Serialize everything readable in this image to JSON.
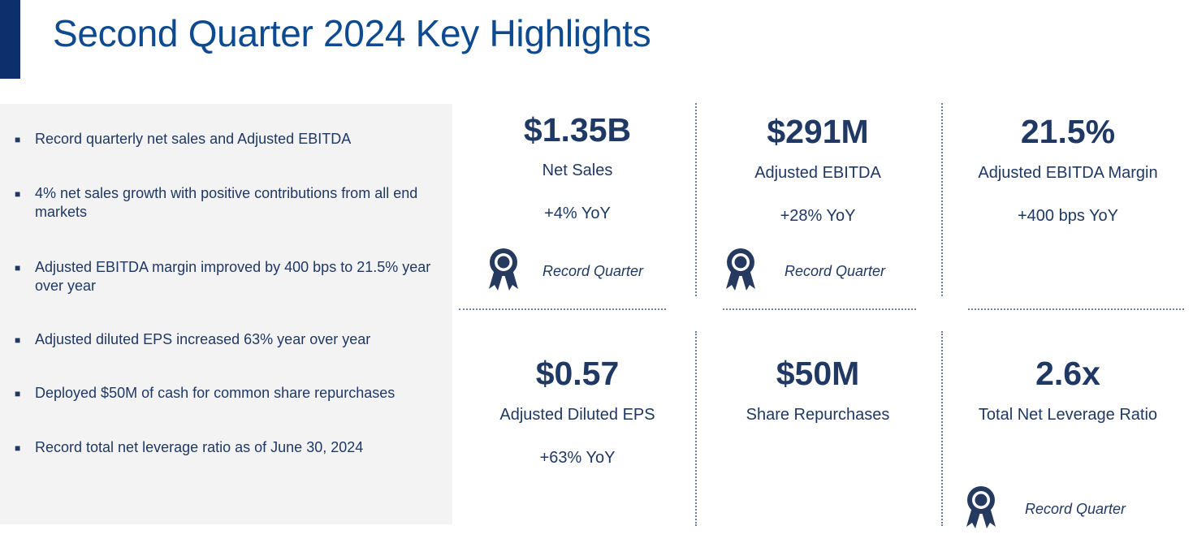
{
  "title": "Second Quarter 2024 Key Highlights",
  "colors": {
    "accent": "#0d2f6b",
    "title": "#0d4a8f",
    "text": "#1f3864",
    "panel": "#f3f3f3"
  },
  "bullets": [
    "Record quarterly net sales and Adjusted EBITDA",
    "4% net sales growth with positive contributions from all end markets",
    "Adjusted EBITDA margin improved by 400 bps to 21.5% year over year",
    "Adjusted diluted EPS increased 63% year over year",
    "Deployed $50M of cash for common share repurchases",
    "Record total net leverage ratio as of June 30, 2024"
  ],
  "bullet_marker": "■",
  "metrics": {
    "net_sales": {
      "value": "$1.35B",
      "label": "Net Sales",
      "change": "+4% YoY"
    },
    "adjusted_ebitda": {
      "value": "$291M",
      "label": "Adjusted EBITDA",
      "change": "+28% YoY"
    },
    "ebitda_margin": {
      "value": "21.5%",
      "label": "Adjusted EBITDA Margin",
      "change": "+400 bps YoY"
    },
    "diluted_eps": {
      "value": "$0.57",
      "label": "Adjusted Diluted EPS",
      "change": "+63% YoY"
    },
    "share_repurchases": {
      "value": "$50M",
      "label": "Share Repurchases"
    },
    "net_leverage": {
      "value": "2.6x",
      "label": "Total Net Leverage Ratio"
    }
  },
  "record_badge": {
    "text": "Record Quarter",
    "icon": "award-ribbon-icon"
  }
}
